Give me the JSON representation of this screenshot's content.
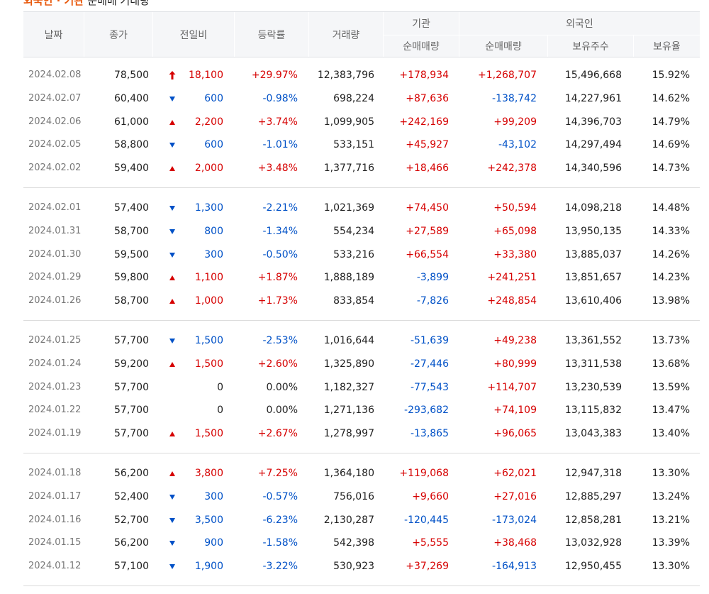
{
  "header": {
    "title_highlight": "외국인 · 기관",
    "title_rest": "순매매 거래량"
  },
  "table": {
    "columns": {
      "date": "날짜",
      "close": "종가",
      "change": "전일비",
      "rate": "등락률",
      "volume": "거래량",
      "institution": "기관",
      "foreign": "외국인",
      "inst_net": "순매매량",
      "foreign_net": "순매매량",
      "holdings": "보유주수",
      "ratio": "보유율"
    },
    "groups": [
      {
        "rows": [
          {
            "date": "2024.02.08",
            "close": "78,500",
            "change_dir": "limit-up",
            "change": "18,100",
            "rate": "+29.97%",
            "volume": "12,383,796",
            "inst_net": "+178,934",
            "foreign_net": "+1,268,707",
            "holdings": "15,496,668",
            "ratio": "15.92%"
          },
          {
            "date": "2024.02.07",
            "close": "60,400",
            "change_dir": "down",
            "change": "600",
            "rate": "-0.98%",
            "volume": "698,224",
            "inst_net": "+87,636",
            "foreign_net": "-138,742",
            "holdings": "14,227,961",
            "ratio": "14.62%"
          },
          {
            "date": "2024.02.06",
            "close": "61,000",
            "change_dir": "up",
            "change": "2,200",
            "rate": "+3.74%",
            "volume": "1,099,905",
            "inst_net": "+242,169",
            "foreign_net": "+99,209",
            "holdings": "14,396,703",
            "ratio": "14.79%"
          },
          {
            "date": "2024.02.05",
            "close": "58,800",
            "change_dir": "down",
            "change": "600",
            "rate": "-1.01%",
            "volume": "533,151",
            "inst_net": "+45,927",
            "foreign_net": "-43,102",
            "holdings": "14,297,494",
            "ratio": "14.69%"
          },
          {
            "date": "2024.02.02",
            "close": "59,400",
            "change_dir": "up",
            "change": "2,000",
            "rate": "+3.48%",
            "volume": "1,377,716",
            "inst_net": "+18,466",
            "foreign_net": "+242,378",
            "holdings": "14,340,596",
            "ratio": "14.73%"
          }
        ]
      },
      {
        "rows": [
          {
            "date": "2024.02.01",
            "close": "57,400",
            "change_dir": "down",
            "change": "1,300",
            "rate": "-2.21%",
            "volume": "1,021,369",
            "inst_net": "+74,450",
            "foreign_net": "+50,594",
            "holdings": "14,098,218",
            "ratio": "14.48%"
          },
          {
            "date": "2024.01.31",
            "close": "58,700",
            "change_dir": "down",
            "change": "800",
            "rate": "-1.34%",
            "volume": "554,234",
            "inst_net": "+27,589",
            "foreign_net": "+65,098",
            "holdings": "13,950,135",
            "ratio": "14.33%"
          },
          {
            "date": "2024.01.30",
            "close": "59,500",
            "change_dir": "down",
            "change": "300",
            "rate": "-0.50%",
            "volume": "533,216",
            "inst_net": "+66,554",
            "foreign_net": "+33,380",
            "holdings": "13,885,037",
            "ratio": "14.26%"
          },
          {
            "date": "2024.01.29",
            "close": "59,800",
            "change_dir": "up",
            "change": "1,100",
            "rate": "+1.87%",
            "volume": "1,888,189",
            "inst_net": "-3,899",
            "foreign_net": "+241,251",
            "holdings": "13,851,657",
            "ratio": "14.23%"
          },
          {
            "date": "2024.01.26",
            "close": "58,700",
            "change_dir": "up",
            "change": "1,000",
            "rate": "+1.73%",
            "volume": "833,854",
            "inst_net": "-7,826",
            "foreign_net": "+248,854",
            "holdings": "13,610,406",
            "ratio": "13.98%"
          }
        ]
      },
      {
        "rows": [
          {
            "date": "2024.01.25",
            "close": "57,700",
            "change_dir": "down",
            "change": "1,500",
            "rate": "-2.53%",
            "volume": "1,016,644",
            "inst_net": "-51,639",
            "foreign_net": "+49,238",
            "holdings": "13,361,552",
            "ratio": "13.73%"
          },
          {
            "date": "2024.01.24",
            "close": "59,200",
            "change_dir": "up",
            "change": "1,500",
            "rate": "+2.60%",
            "volume": "1,325,890",
            "inst_net": "-27,446",
            "foreign_net": "+80,999",
            "holdings": "13,311,538",
            "ratio": "13.68%"
          },
          {
            "date": "2024.01.23",
            "close": "57,700",
            "change_dir": "flat",
            "change": "0",
            "rate": "0.00%",
            "volume": "1,182,327",
            "inst_net": "-77,543",
            "foreign_net": "+114,707",
            "holdings": "13,230,539",
            "ratio": "13.59%"
          },
          {
            "date": "2024.01.22",
            "close": "57,700",
            "change_dir": "flat",
            "change": "0",
            "rate": "0.00%",
            "volume": "1,271,136",
            "inst_net": "-293,682",
            "foreign_net": "+74,109",
            "holdings": "13,115,832",
            "ratio": "13.47%"
          },
          {
            "date": "2024.01.19",
            "close": "57,700",
            "change_dir": "up",
            "change": "1,500",
            "rate": "+2.67%",
            "volume": "1,278,997",
            "inst_net": "-13,865",
            "foreign_net": "+96,065",
            "holdings": "13,043,383",
            "ratio": "13.40%"
          }
        ]
      },
      {
        "rows": [
          {
            "date": "2024.01.18",
            "close": "56,200",
            "change_dir": "up",
            "change": "3,800",
            "rate": "+7.25%",
            "volume": "1,364,180",
            "inst_net": "+119,068",
            "foreign_net": "+62,021",
            "holdings": "12,947,318",
            "ratio": "13.30%"
          },
          {
            "date": "2024.01.17",
            "close": "52,400",
            "change_dir": "down",
            "change": "300",
            "rate": "-0.57%",
            "volume": "756,016",
            "inst_net": "+9,660",
            "foreign_net": "+27,016",
            "holdings": "12,885,297",
            "ratio": "13.24%"
          },
          {
            "date": "2024.01.16",
            "close": "52,700",
            "change_dir": "down",
            "change": "3,500",
            "rate": "-6.23%",
            "volume": "2,130,287",
            "inst_net": "-120,445",
            "foreign_net": "-173,024",
            "holdings": "12,858,281",
            "ratio": "13.21%"
          },
          {
            "date": "2024.01.15",
            "close": "56,200",
            "change_dir": "down",
            "change": "900",
            "rate": "-1.58%",
            "volume": "542,398",
            "inst_net": "+5,555",
            "foreign_net": "+38,468",
            "holdings": "13,032,928",
            "ratio": "13.39%"
          },
          {
            "date": "2024.01.12",
            "close": "57,100",
            "change_dir": "down",
            "change": "1,900",
            "rate": "-3.22%",
            "volume": "530,923",
            "inst_net": "+37,269",
            "foreign_net": "-164,913",
            "holdings": "12,950,455",
            "ratio": "13.30%"
          }
        ]
      }
    ]
  }
}
